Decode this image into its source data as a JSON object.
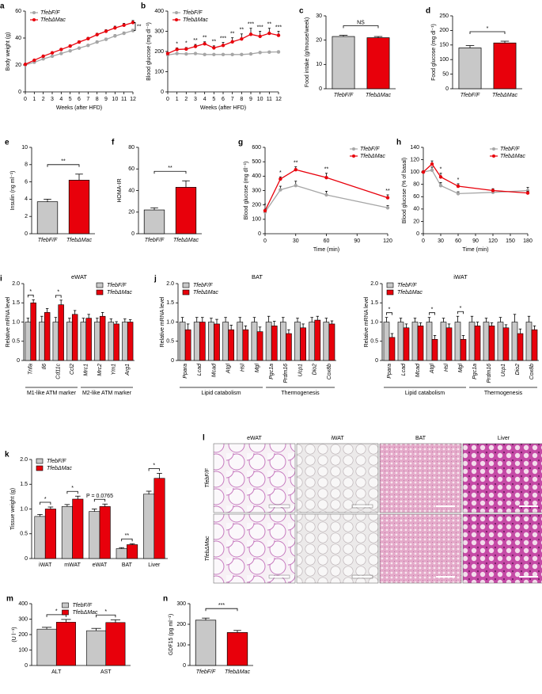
{
  "chart_data": [
    {
      "type": "line",
      "panel": "a",
      "ylabel": "Body weight (g)",
      "xlabel": "Weeks (after HFD)",
      "x": [
        0,
        1,
        2,
        3,
        4,
        5,
        6,
        7,
        8,
        9,
        10,
        11,
        12
      ],
      "xlim": [
        0,
        12
      ],
      "xticks": [
        0,
        1,
        2,
        3,
        4,
        5,
        6,
        7,
        8,
        9,
        10,
        11,
        12
      ],
      "ylim": [
        0,
        60
      ],
      "yticks": [
        0,
        20,
        40,
        60
      ],
      "legend": "upper left",
      "significance": "**",
      "series": [
        {
          "name": "TfebF/F",
          "color": "#a6a6a6",
          "values": [
            20,
            22,
            24.5,
            26.5,
            28.5,
            30.5,
            32.5,
            34.5,
            37,
            39,
            41.5,
            43.5,
            45.5
          ],
          "errors": [
            0.5,
            0.5,
            0.6,
            0.6,
            0.7,
            0.7,
            0.8,
            0.8,
            0.9,
            0.9,
            1,
            1,
            1
          ]
        },
        {
          "name": "TfebΔMac",
          "color": "#e8000b",
          "values": [
            20.5,
            23.5,
            26.5,
            29,
            31.5,
            34,
            37,
            39.5,
            42.5,
            45,
            47.5,
            49.5,
            51.5
          ],
          "errors": [
            0.5,
            0.6,
            0.7,
            0.7,
            0.8,
            0.9,
            1,
            1,
            1.1,
            1.2,
            1.3,
            1.4,
            1.5
          ]
        }
      ]
    },
    {
      "type": "line",
      "panel": "b",
      "ylabel": "Blood glucose (mg dl⁻¹)",
      "xlabel": "Weeks (after HFD)",
      "x": [
        0,
        1,
        2,
        3,
        4,
        5,
        6,
        7,
        8,
        9,
        10,
        11,
        12
      ],
      "xlim": [
        0,
        12
      ],
      "xticks": [
        0,
        1,
        2,
        3,
        4,
        5,
        6,
        7,
        8,
        9,
        10,
        11,
        12
      ],
      "ylim": [
        0,
        400
      ],
      "yticks": [
        0,
        100,
        200,
        300,
        400
      ],
      "legend": "upper left",
      "significance": [
        null,
        "*",
        "*",
        "**",
        "**",
        "**",
        "***",
        "**",
        "**",
        "***",
        "***",
        "**",
        "***"
      ],
      "series": [
        {
          "name": "TfebF/F",
          "color": "#a6a6a6",
          "values": [
            183,
            190,
            188,
            190,
            185,
            185,
            185,
            185,
            185,
            188,
            195,
            197,
            198
          ],
          "errors": [
            4,
            4,
            4,
            4,
            4,
            4,
            4,
            4,
            4,
            4,
            5,
            5,
            5
          ]
        },
        {
          "name": "TfebΔMac",
          "color": "#e8000b",
          "values": [
            190,
            210,
            212,
            225,
            238,
            218,
            230,
            248,
            262,
            285,
            275,
            290,
            280
          ],
          "errors": [
            6,
            8,
            8,
            10,
            10,
            10,
            15,
            20,
            25,
            30,
            25,
            25,
            20
          ]
        }
      ]
    },
    {
      "type": "bar",
      "panel": "c",
      "ylabel": "Food intake (g/mouse/week)",
      "categories": [
        "TfebF/F",
        "TfebΔMac"
      ],
      "values": [
        21.5,
        21
      ],
      "errors": [
        0.5,
        0.5
      ],
      "colors": [
        "#c8c8c8",
        "#e8000b"
      ],
      "ylim": [
        0,
        30
      ],
      "yticks": [
        0,
        10,
        20,
        30
      ],
      "significance": "NS"
    },
    {
      "type": "bar",
      "panel": "d",
      "ylabel": "Food glucose (mg dl⁻¹)",
      "categories": [
        "TfebF/F",
        "TfebΔMac"
      ],
      "values": [
        140,
        157
      ],
      "errors": [
        8,
        6
      ],
      "colors": [
        "#c8c8c8",
        "#e8000b"
      ],
      "ylim": [
        0,
        250
      ],
      "yticks": [
        0,
        50,
        100,
        150,
        200,
        250
      ],
      "significance": "*"
    },
    {
      "type": "bar",
      "panel": "e",
      "ylabel": "Insulin (ng ml⁻¹)",
      "categories": [
        "TfebF/F",
        "TfebΔMac"
      ],
      "values": [
        3.7,
        6.2
      ],
      "errors": [
        0.3,
        0.7
      ],
      "colors": [
        "#c8c8c8",
        "#e8000b"
      ],
      "ylim": [
        0,
        10
      ],
      "yticks": [
        0,
        2,
        4,
        6,
        8,
        10
      ],
      "significance": "**"
    },
    {
      "type": "bar",
      "panel": "f",
      "ylabel": "HOMA-IR",
      "categories": [
        "TfebF/F",
        "TfebΔMac"
      ],
      "values": [
        22,
        43
      ],
      "errors": [
        2,
        6
      ],
      "colors": [
        "#c8c8c8",
        "#e8000b"
      ],
      "ylim": [
        0,
        80
      ],
      "yticks": [
        0,
        20,
        40,
        60,
        80
      ],
      "significance": "**"
    },
    {
      "type": "line",
      "panel": "g",
      "ylabel": "Blood glucose (mg dl⁻¹)",
      "xlabel": "Time (min)",
      "x": [
        0,
        15,
        30,
        60,
        120
      ],
      "xlim": [
        0,
        120
      ],
      "xticks": [
        0,
        30,
        60,
        90,
        120
      ],
      "ylim": [
        0,
        600
      ],
      "yticks": [
        0,
        100,
        200,
        300,
        400,
        500,
        600
      ],
      "legend": "upper right",
      "significance": [
        "*",
        "*",
        "**",
        "**",
        "**"
      ],
      "series": [
        {
          "name": "TfebF/F",
          "color": "#a6a6a6",
          "values": [
            150,
            305,
            335,
            270,
            180
          ],
          "errors": [
            10,
            25,
            30,
            25,
            15
          ]
        },
        {
          "name": "TfebΔMac",
          "color": "#e8000b",
          "values": [
            160,
            380,
            445,
            390,
            250
          ],
          "errors": [
            10,
            15,
            20,
            30,
            20
          ]
        }
      ]
    },
    {
      "type": "line",
      "panel": "h",
      "ylabel": "Blood glucose (% of basal)",
      "xlabel": "Time (min)",
      "x": [
        0,
        15,
        30,
        60,
        120,
        180
      ],
      "xlim": [
        0,
        180
      ],
      "xticks": [
        0,
        30,
        60,
        90,
        120,
        150,
        180
      ],
      "ylim": [
        0,
        140
      ],
      "yticks": [
        0,
        20,
        40,
        60,
        80,
        100,
        120,
        140
      ],
      "legend": "upper right",
      "significance": [
        null,
        null,
        "*",
        "*",
        null,
        null
      ],
      "series": [
        {
          "name": "TfebF/F",
          "color": "#a6a6a6",
          "values": [
            100,
            103,
            78,
            65,
            67,
            70
          ],
          "errors": [
            2,
            5,
            5,
            3,
            4,
            5
          ]
        },
        {
          "name": "TfebΔMac",
          "color": "#e8000b",
          "values": [
            100,
            113,
            92,
            77,
            70,
            66
          ],
          "errors": [
            2,
            5,
            6,
            4,
            3,
            3
          ]
        }
      ]
    },
    {
      "type": "grouped-bar",
      "panel": "i",
      "title": "eWAT",
      "ylabel": "Relative mRNA level",
      "groups": [
        {
          "label": "M1-like ATM marker",
          "categories": [
            "Tnfa",
            "Il6",
            "Cd11c",
            "Ccl2"
          ]
        },
        {
          "label": "M2-like ATM marker",
          "categories": [
            "Mrc1",
            "Mrc2",
            "Ym1",
            "Arg1"
          ]
        }
      ],
      "ylim": [
        0,
        2
      ],
      "yticks": [
        0,
        0.5,
        {
          "value": 1,
          "label": "1.0"
        },
        1.5,
        {
          "value": 2,
          "label": "2.0"
        }
      ],
      "legend": "upper right",
      "significance": [
        "*",
        null,
        "*",
        null,
        null,
        null,
        null,
        null
      ],
      "series": [
        {
          "name": "TfebF/F",
          "color": "#c8c8c8",
          "values": [
            1,
            1,
            1,
            1,
            1,
            1,
            1,
            1
          ],
          "errors": [
            0.1,
            0.15,
            0.12,
            0.1,
            0.1,
            0.1,
            0.08,
            0.08
          ]
        },
        {
          "name": "TfebΔMac",
          "color": "#e8000b",
          "values": [
            1.5,
            1.25,
            1.45,
            1.2,
            1.1,
            1.15,
            0.95,
            1
          ],
          "errors": [
            0.08,
            0.1,
            0.12,
            0.1,
            0.1,
            0.1,
            0.06,
            0.06
          ]
        }
      ]
    },
    {
      "type": "grouped-bar",
      "panel": "j",
      "title": "BAT",
      "ylabel": "Relative mRNA level",
      "groups": [
        {
          "label": "Lipid catabolism",
          "categories": [
            "Ppara",
            "Lcad",
            "Mcad",
            "Atgl",
            "Hsl",
            "Mgl"
          ]
        },
        {
          "label": "Thermogenesis",
          "categories": [
            "Pgc1a",
            "Prdm16",
            "Ucp1",
            "Dio2",
            "Cox8b"
          ]
        }
      ],
      "ylim": [
        0,
        2
      ],
      "yticks": [
        0,
        0.5,
        {
          "value": 1,
          "label": "1.0"
        },
        1.5,
        {
          "value": 2,
          "label": "2.0"
        }
      ],
      "legend": "upper left",
      "series": [
        {
          "name": "TfebF/F",
          "color": "#c8c8c8",
          "values": [
            1,
            1,
            1,
            1,
            1,
            1,
            1,
            1,
            1,
            1,
            1
          ],
          "errors": [
            0.12,
            0.12,
            0.1,
            0.12,
            0.12,
            0.12,
            0.15,
            0.12,
            0.1,
            0.12,
            0.1
          ]
        },
        {
          "name": "TfebΔMac",
          "color": "#e8000b",
          "values": [
            0.8,
            1,
            0.95,
            0.8,
            0.8,
            0.75,
            0.9,
            0.7,
            0.85,
            1.05,
            0.95
          ],
          "errors": [
            0.15,
            0.12,
            0.12,
            0.12,
            0.1,
            0.12,
            0.12,
            0.1,
            0.1,
            0.1,
            0.08
          ]
        }
      ]
    },
    {
      "type": "grouped-bar",
      "title": "iWAT",
      "ylabel": "Relative mRNA level",
      "groups": [
        {
          "label": "Lipid catabolism",
          "categories": [
            "Ppara",
            "Lcad",
            "Mcad",
            "Atgl",
            "Hsl",
            "Mgl"
          ]
        },
        {
          "label": "Thermogenesis",
          "categories": [
            "Pgc1a",
            "Prdm16",
            "Ucp1",
            "Dio2",
            "Cox8b"
          ]
        }
      ],
      "ylim": [
        0,
        2
      ],
      "yticks": [
        0,
        0.5,
        {
          "value": 1,
          "label": "1.0"
        },
        1.5,
        {
          "value": 2,
          "label": "2.0"
        }
      ],
      "legend": "upper left",
      "significance": [
        "*",
        null,
        null,
        "*",
        null,
        "*",
        null,
        null,
        null,
        null,
        null
      ],
      "series": [
        {
          "name": "TfebF/F",
          "color": "#c8c8c8",
          "values": [
            1,
            1,
            1,
            1,
            1,
            1,
            1,
            1,
            1,
            1,
            1
          ],
          "errors": [
            0.12,
            0.1,
            0.1,
            0.12,
            0.1,
            0.15,
            0.15,
            0.1,
            0.12,
            0.2,
            0.15
          ]
        },
        {
          "name": "TfebΔMac",
          "color": "#e8000b",
          "values": [
            0.6,
            0.85,
            0.9,
            0.55,
            0.85,
            0.55,
            0.9,
            0.9,
            0.85,
            0.7,
            0.8
          ],
          "errors": [
            0.1,
            0.1,
            0.08,
            0.1,
            0.1,
            0.1,
            0.1,
            0.08,
            0.08,
            0.12,
            0.1
          ]
        }
      ]
    },
    {
      "type": "grouped-bar",
      "panel": "k",
      "ylabel": "Tissue weight (g)",
      "categories": [
        "iWAT",
        "mWAT",
        "eWAT",
        "BAT",
        "Liver"
      ],
      "ylim": [
        0,
        2
      ],
      "yticks": [
        0,
        0.5,
        {
          "value": 1,
          "label": "1.0"
        },
        1.5,
        {
          "value": 2,
          "label": "2.0"
        }
      ],
      "legend": "upper left",
      "significance": [
        "*",
        "*",
        "P = 0.0765",
        "**",
        "*"
      ],
      "series": [
        {
          "name": "TfebF/F",
          "color": "#c8c8c8",
          "values": [
            0.85,
            1.05,
            0.95,
            0.2,
            1.3
          ],
          "errors": [
            0.04,
            0.04,
            0.05,
            0.02,
            0.06
          ]
        },
        {
          "name": "TfebΔMac",
          "color": "#e8000b",
          "values": [
            1,
            1.2,
            1.05,
            0.28,
            1.62
          ],
          "errors": [
            0.04,
            0.06,
            0.05,
            0.02,
            0.1
          ]
        }
      ]
    },
    {
      "type": "grouped-bar",
      "panel": "m",
      "ylabel": "(U l⁻¹)",
      "categories": [
        "ALT",
        "AST"
      ],
      "ylim": [
        0,
        400
      ],
      "yticks": [
        0,
        100,
        200,
        300,
        400
      ],
      "legend": "upper center",
      "significance": [
        "*",
        "*"
      ],
      "series": [
        {
          "name": "TfebF/F",
          "color": "#c8c8c8",
          "values": [
            235,
            225
          ],
          "errors": [
            12,
            15
          ]
        },
        {
          "name": "TfebΔMac",
          "color": "#e8000b",
          "values": [
            280,
            278
          ],
          "errors": [
            18,
            18
          ]
        }
      ]
    },
    {
      "type": "bar",
      "panel": "n",
      "ylabel": "GDF15 (pg ml⁻¹)",
      "categories": [
        "TfebF/F",
        "TfebΔMac"
      ],
      "values": [
        220,
        160
      ],
      "errors": [
        10,
        10
      ],
      "colors": [
        "#c8c8c8",
        "#e8000b"
      ],
      "ylim": [
        0,
        300
      ],
      "yticks": [
        0,
        100,
        200,
        300
      ],
      "significance": "***"
    }
  ],
  "histology": {
    "panel": "l",
    "columns": [
      "eWAT",
      "iWAT",
      "BAT",
      "Liver"
    ],
    "rows": [
      "TfebF/F",
      "TfebΔMac"
    ]
  }
}
